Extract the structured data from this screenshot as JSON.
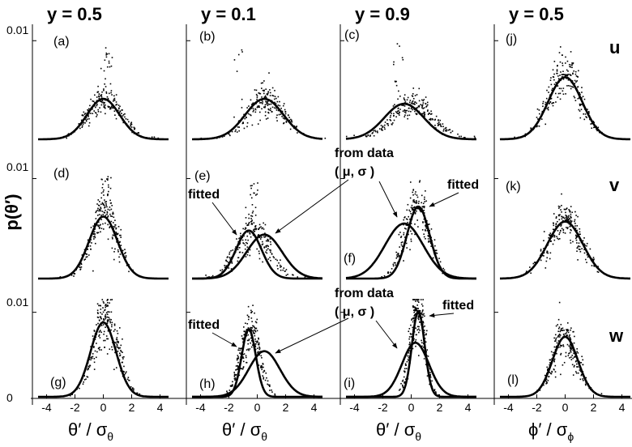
{
  "chart_data": {
    "type": "scatter",
    "ylabel": "p(θ′)",
    "ytick_labels": [
      "0",
      "0.01"
    ],
    "xtick_labels": [
      "-4",
      "-2",
      "0",
      "2",
      "4"
    ],
    "xlim": [
      -5,
      5
    ],
    "ylim": [
      0,
      0.0115
    ],
    "columns": [
      {
        "title": "y = 0.5",
        "xlabel_main": "θ′ / σ",
        "xlabel_sub": "θ"
      },
      {
        "title": "y = 0.1",
        "xlabel_main": "θ′ / σ",
        "xlabel_sub": "θ"
      },
      {
        "title": "y = 0.9",
        "xlabel_main": "θ′ / σ",
        "xlabel_sub": "θ"
      },
      {
        "title": "y = 0.5",
        "xlabel_main": "ϕ′ / σ",
        "xlabel_sub": "ϕ"
      }
    ],
    "rows": [
      {
        "label": "u"
      },
      {
        "label": "v"
      },
      {
        "label": "w"
      }
    ],
    "panels": [
      {
        "label": "(a)",
        "row": 0,
        "col": 0,
        "curves": [
          {
            "mu": 0,
            "sigma": 1.15,
            "peak": 0.0041
          }
        ],
        "scatter": {
          "mu": 0.1,
          "sigma": 1.2,
          "peak": 0.004,
          "spike": 0.0095,
          "spike_x": 0.3,
          "n": 230
        }
      },
      {
        "label": "(b)",
        "row": 0,
        "col": 1,
        "curves": [
          {
            "mu": 0.5,
            "sigma": 1.35,
            "peak": 0.0041
          }
        ],
        "scatter": {
          "mu": 0.6,
          "sigma": 1.3,
          "peak": 0.004,
          "spike": 0.0102,
          "spike_x": -1.4,
          "n": 230
        }
      },
      {
        "label": "(c)",
        "row": 0,
        "col": 2,
        "curves": [
          {
            "mu": -0.5,
            "sigma": 1.4,
            "peak": 0.0036
          }
        ],
        "scatter": {
          "mu": 0.1,
          "sigma": 1.5,
          "peak": 0.0034,
          "spike": 0.0102,
          "spike_x": -0.9,
          "n": 230
        }
      },
      {
        "label": "(j)",
        "row": 0,
        "col": 3,
        "curves": [
          {
            "mu": 0,
            "sigma": 1.2,
            "peak": 0.0063
          }
        ],
        "scatter": {
          "mu": 0,
          "sigma": 1.2,
          "peak": 0.0064,
          "spike": 0.0066,
          "spike_x": 0.1,
          "n": 230
        }
      },
      {
        "label": "(d)",
        "row": 1,
        "col": 0,
        "curves": [
          {
            "mu": 0,
            "sigma": 1.0,
            "peak": 0.0062
          }
        ],
        "scatter": {
          "mu": 0.1,
          "sigma": 0.95,
          "peak": 0.0064,
          "spike": 0.0103,
          "spike_x": 0.2,
          "n": 230
        }
      },
      {
        "label": "(e)",
        "row": 1,
        "col": 1,
        "curves": [
          {
            "mu": -0.6,
            "sigma": 0.9,
            "peak": 0.0048
          },
          {
            "mu": 0.5,
            "sigma": 1.25,
            "peak": 0.0044
          }
        ],
        "scatter": {
          "mu": -0.3,
          "sigma": 1.2,
          "peak": 0.0047,
          "spike": 0.0096,
          "spike_x": -0.3,
          "n": 230
        },
        "annotations": [
          "fitted"
        ]
      },
      {
        "label": "(f)",
        "row": 1,
        "col": 2,
        "curves": [
          {
            "mu": -0.5,
            "sigma": 1.35,
            "peak": 0.0055
          },
          {
            "mu": 0.5,
            "sigma": 0.8,
            "peak": 0.0072
          }
        ],
        "scatter": {
          "mu": 0.4,
          "sigma": 0.9,
          "peak": 0.007,
          "spike": 0.0072,
          "spike_x": 0.5,
          "n": 230
        },
        "annotations": [
          "from data",
          "( μ, σ )",
          "fitted"
        ]
      },
      {
        "label": "(k)",
        "row": 1,
        "col": 3,
        "curves": [
          {
            "mu": 0,
            "sigma": 1.25,
            "peak": 0.0057
          }
        ],
        "scatter": {
          "mu": 0,
          "sigma": 1.25,
          "peak": 0.0058,
          "spike": 0.0063,
          "spike_x": 0.1,
          "n": 230
        }
      },
      {
        "label": "(g)",
        "row": 2,
        "col": 0,
        "curves": [
          {
            "mu": 0,
            "sigma": 0.9,
            "peak": 0.0088
          }
        ],
        "scatter": {
          "mu": 0.2,
          "sigma": 0.9,
          "peak": 0.0088,
          "spike": 0.0113,
          "spike_x": -0.1,
          "n": 230
        }
      },
      {
        "label": "(h)",
        "row": 2,
        "col": 1,
        "curves": [
          {
            "mu": -0.6,
            "sigma": 0.5,
            "peak": 0.008
          },
          {
            "mu": 0.5,
            "sigma": 1.1,
            "peak": 0.0054
          }
        ],
        "scatter": {
          "mu": -0.5,
          "sigma": 0.7,
          "peak": 0.0078,
          "spike": 0.0082,
          "spike_x": -0.6,
          "n": 230
        },
        "annotations": [
          "fitted"
        ]
      },
      {
        "label": "(i)",
        "row": 2,
        "col": 2,
        "curves": [
          {
            "mu": 0.3,
            "sigma": 0.95,
            "peak": 0.0064
          },
          {
            "mu": 0.5,
            "sigma": 0.45,
            "peak": 0.0101
          }
        ],
        "scatter": {
          "mu": 0.45,
          "sigma": 0.55,
          "peak": 0.0098,
          "spike": 0.0105,
          "spike_x": 0.5,
          "n": 230
        },
        "annotations": [
          "from data",
          "( μ, σ )",
          "fitted"
        ]
      },
      {
        "label": "(l)",
        "row": 2,
        "col": 3,
        "curves": [
          {
            "mu": 0,
            "sigma": 0.9,
            "peak": 0.0071
          }
        ],
        "scatter": {
          "mu": 0,
          "sigma": 0.9,
          "peak": 0.0071,
          "spike": 0.008,
          "spike_x": 0.0,
          "n": 230
        }
      }
    ]
  }
}
